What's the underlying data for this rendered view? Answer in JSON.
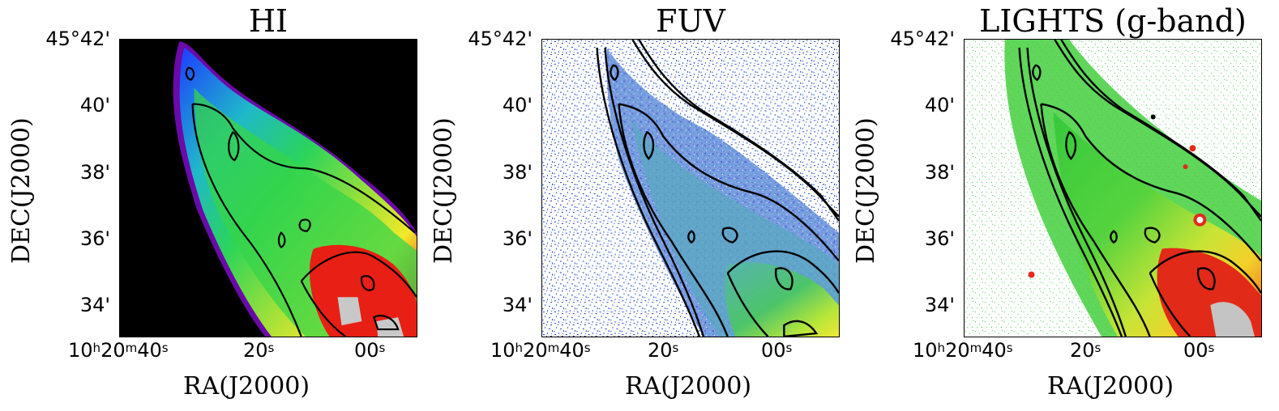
{
  "figure": {
    "panels": [
      {
        "title": "HI",
        "ylabel": "DEC(J2000)",
        "xlabel": "RA(J2000)",
        "yticks": [
          "45°42'",
          "40'",
          "38'",
          "36'",
          "34'"
        ],
        "xticks": [
          {
            "h": "10",
            "m": "20",
            "s": "40"
          },
          {
            "s": "20"
          },
          {
            "s": "00"
          }
        ],
        "colormap": "nipy-spectral-like (black background, blue→green→yellow→red→grey)"
      },
      {
        "title": "FUV",
        "ylabel": "DEC(J2000)",
        "xlabel": "RA(J2000)",
        "yticks": [
          "45°42'",
          "40'",
          "38'",
          "36'",
          "34'"
        ],
        "xticks": [
          {
            "h": "10",
            "m": "20",
            "s": "40"
          },
          {
            "s": "20"
          },
          {
            "s": "00"
          }
        ],
        "colormap": "white/blue noise with green→yellow emission"
      },
      {
        "title": "LIGHTS (g-band)",
        "ylabel": "DEC(J2000)",
        "xlabel": "RA(J2000)",
        "yticks": [
          "45°42'",
          "40'",
          "38'",
          "36'",
          "34'"
        ],
        "xticks": [
          {
            "h": "10",
            "m": "20",
            "s": "40"
          },
          {
            "s": "20"
          },
          {
            "s": "00"
          }
        ],
        "colormap": "white background green→yellow→red→grey"
      }
    ],
    "colors": {
      "contour": "#000000",
      "hi_background": "#000000",
      "hi_edge": "#6a0aa8"
    }
  }
}
